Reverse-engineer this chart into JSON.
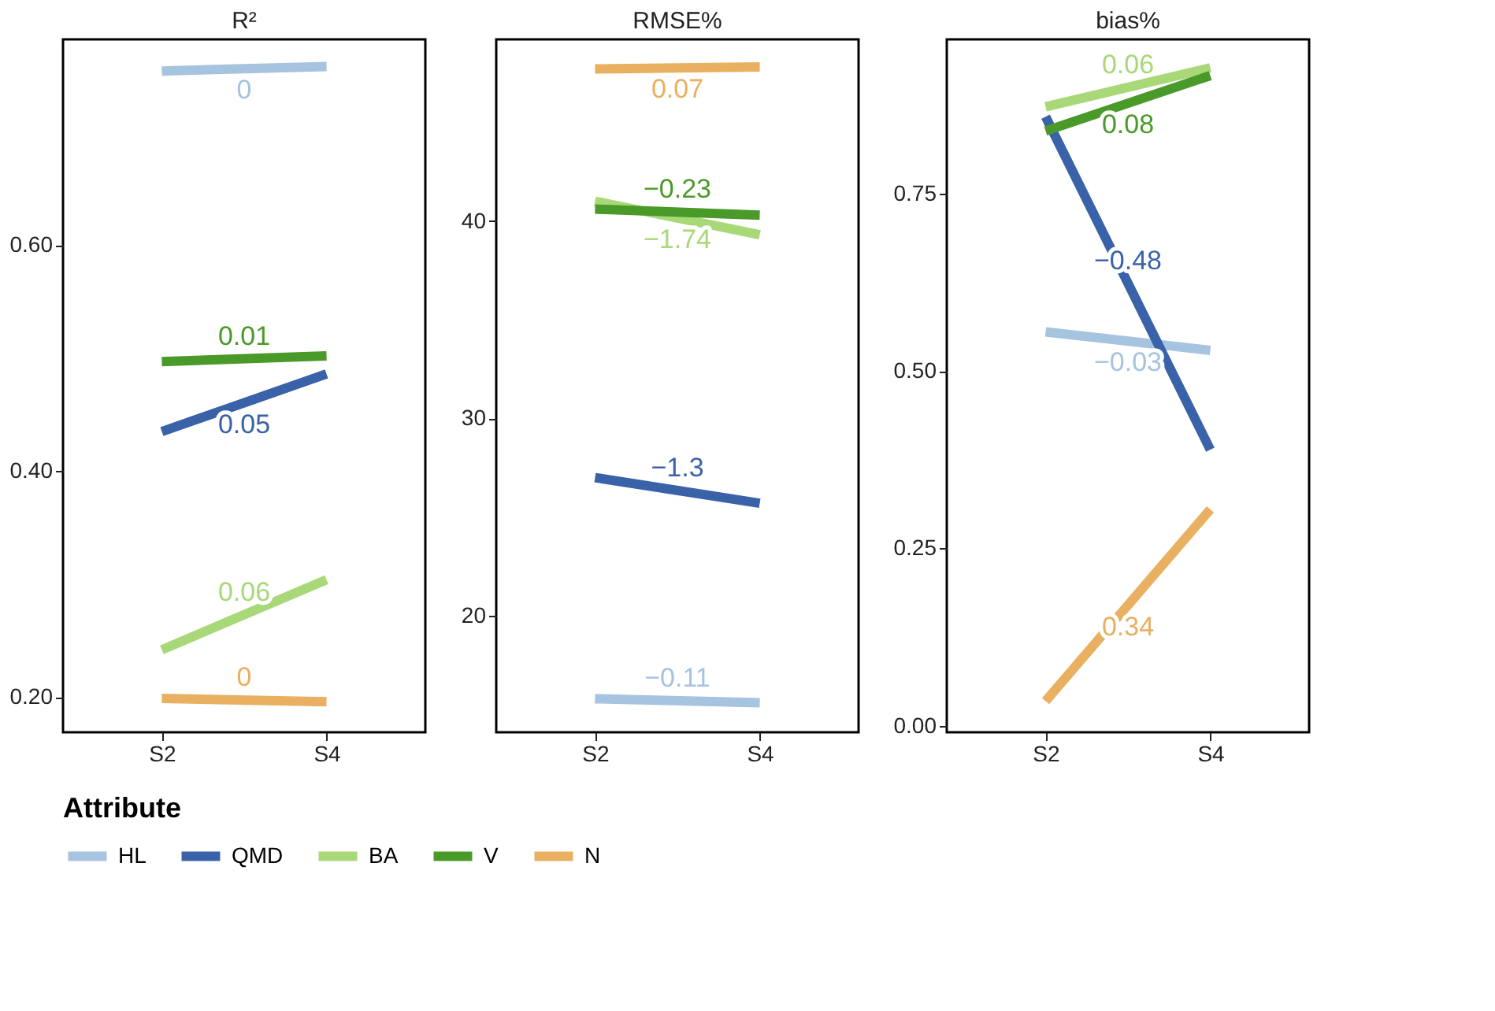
{
  "chart_data": [
    {
      "type": "line",
      "title": "R²",
      "categories": [
        "S2",
        "S4"
      ],
      "ylim": [
        0.169,
        0.782
      ],
      "yticks": [
        {
          "value": 0.2,
          "label": "0.20"
        },
        {
          "value": 0.4,
          "label": "0.40"
        },
        {
          "value": 0.6,
          "label": "0.60"
        }
      ],
      "grid": false,
      "legend": "bottom",
      "legend_title": "Attribute",
      "series": [
        {
          "name": "HL",
          "color": "#a6c3e0",
          "values": [
            0.754,
            0.758
          ]
        },
        {
          "name": "QMD",
          "color": "#3a62a8",
          "values": [
            0.435,
            0.486
          ]
        },
        {
          "name": "BA",
          "color": "#a8d878",
          "values": [
            0.242,
            0.304
          ]
        },
        {
          "name": "V",
          "color": "#4a9a2a",
          "values": [
            0.497,
            0.502
          ]
        },
        {
          "name": "N",
          "color": "#e8b060",
          "values": [
            0.199,
            0.196
          ]
        }
      ],
      "annotations": [
        "0",
        "0.05",
        "0.06",
        "0.01",
        "0"
      ]
    },
    {
      "type": "line",
      "title": "RMSE%",
      "categories": [
        "S2",
        "S4"
      ],
      "ylim": [
        14.1,
        49.2
      ],
      "yticks": [
        20,
        30,
        40
      ],
      "grid": false,
      "series": [
        {
          "name": "HL",
          "color": "#a6c3e0",
          "values": [
            15.8,
            15.6
          ]
        },
        {
          "name": "QMD",
          "color": "#3a62a8",
          "values": [
            27.0,
            25.7
          ]
        },
        {
          "name": "BA",
          "color": "#a8d878",
          "values": [
            41.0,
            39.3
          ]
        },
        {
          "name": "V",
          "color": "#4a9a2a",
          "values": [
            40.6,
            40.3
          ]
        },
        {
          "name": "N",
          "color": "#e8b060",
          "values": [
            47.7,
            47.8
          ]
        }
      ],
      "annotations": [
        "−0.11",
        "−1.3",
        "−1.74",
        "−0.23",
        "0.07"
      ]
    },
    {
      "type": "line",
      "title": "bias%",
      "categories": [
        "S2",
        "S4"
      ],
      "ylim": [
        -0.009,
        0.967
      ],
      "yticks": [
        {
          "value": 0,
          "label": "0.00"
        },
        {
          "value": 0.25,
          "label": "0.25"
        },
        {
          "value": 0.5,
          "label": "0.50"
        },
        {
          "value": 0.75,
          "label": "0.75"
        }
      ],
      "grid": false,
      "series": [
        {
          "name": "HL",
          "color": "#a6c3e0",
          "values": [
            0.555,
            0.529
          ]
        },
        {
          "name": "QMD",
          "color": "#3a62a8",
          "values": [
            0.858,
            0.389
          ]
        },
        {
          "name": "BA",
          "color": "#a8d878",
          "values": [
            0.872,
            0.927
          ]
        },
        {
          "name": "V",
          "color": "#4a9a2a",
          "values": [
            0.838,
            0.916
          ]
        },
        {
          "name": "N",
          "color": "#e8b060",
          "values": [
            0.035,
            0.305
          ]
        }
      ],
      "annotations": [
        "−0.03",
        "−0.48",
        "0.06",
        "0.08",
        "0.34"
      ]
    }
  ]
}
